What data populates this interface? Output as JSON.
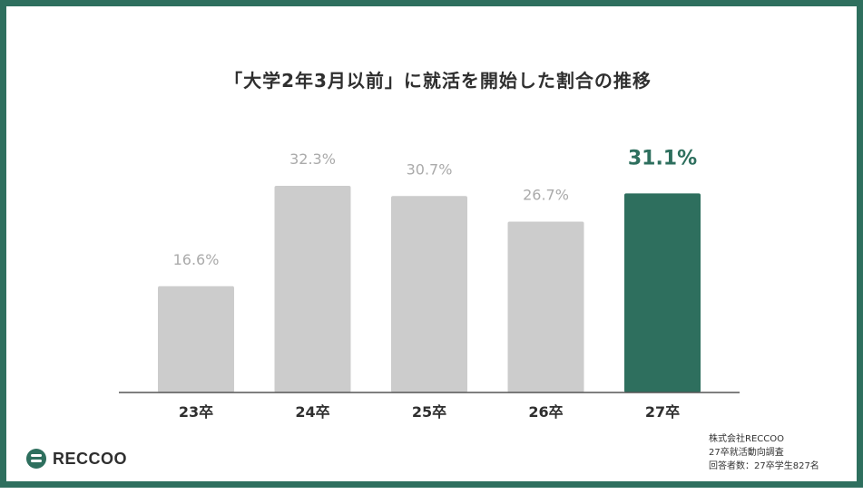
{
  "chart_data": {
    "type": "bar",
    "title": "「大学2年3月以前」に就活を開始した割合の推移",
    "categories": [
      "23卒",
      "24卒",
      "25卒",
      "26卒",
      "27卒"
    ],
    "values": [
      16.6,
      32.3,
      30.7,
      26.7,
      31.1
    ],
    "value_labels": [
      "16.6%",
      "32.3%",
      "30.7%",
      "26.7%",
      "31.1%"
    ],
    "ylim": [
      0,
      40
    ],
    "grid": false,
    "highlight_index": 4,
    "colors": {
      "bar": "#cccccc",
      "highlight": "#2e6f5e",
      "label": "#aaaaaa",
      "highlight_label": "#2e6f5e",
      "baseline": "#555555"
    }
  },
  "brand": {
    "logo_text": "RECCOO",
    "logo_icon": "reccoo-logo-icon"
  },
  "source": {
    "lines": [
      "株式会社RECCOO",
      "27卒就活動向調査",
      "回答者数：27卒学生827名"
    ]
  },
  "frame_color": "#2e6f5e"
}
